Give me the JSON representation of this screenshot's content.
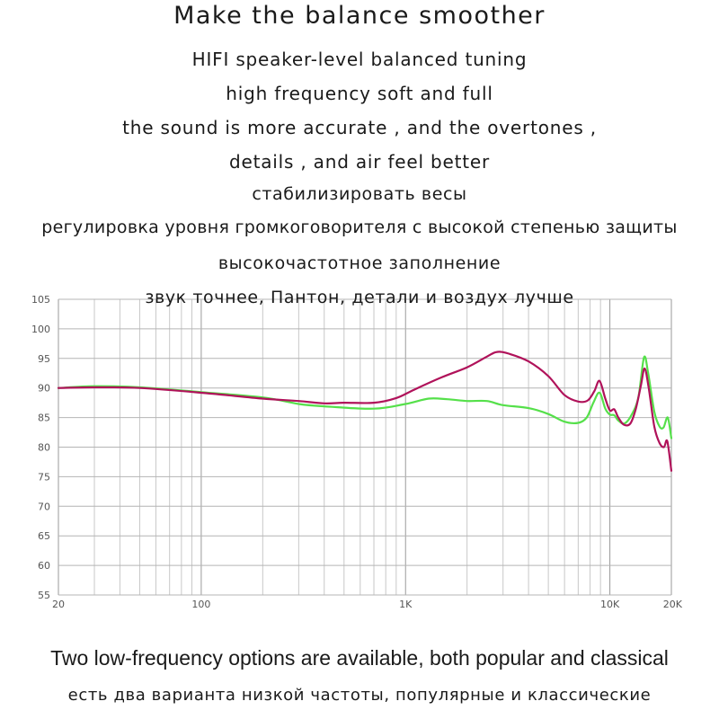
{
  "texts": {
    "title": "Make the balance smoother",
    "l1": "HIFI speaker-level balanced tuning",
    "l2": "high frequency soft and full",
    "l3": "the sound is more accurate , and the overtones ,",
    "l4": "details , and air feel better",
    "r1": "стабилизировать весы",
    "r2": "регулировка уровня громкоговорителя с высокой степенью защиты",
    "r3": "высокочастотное заполнение",
    "r4": "звук точнее, Пантон, детали и воздух лучше",
    "bottom_en": "Two low-frequency options are available, both popular and classical",
    "bottom_ru": "есть два варианта низкой частоты, популярные и классические"
  },
  "chart_data": {
    "type": "line",
    "x_scale": "log",
    "xlim": [
      20,
      20000
    ],
    "ylim": [
      55,
      105
    ],
    "x_ticks": [
      {
        "value": 20,
        "label": "20"
      },
      {
        "value": 100,
        "label": "100"
      },
      {
        "value": 1000,
        "label": "1K"
      },
      {
        "value": 10000,
        "label": "10K"
      },
      {
        "value": 20000,
        "label": "20K"
      }
    ],
    "y_ticks": [
      105,
      100,
      95,
      90,
      85,
      80,
      75,
      70,
      65,
      60,
      55
    ],
    "grid": true,
    "series": [
      {
        "color": "#55e04a",
        "points": [
          [
            20,
            90
          ],
          [
            30,
            90.3
          ],
          [
            50,
            90.1
          ],
          [
            100,
            89.3
          ],
          [
            200,
            88.4
          ],
          [
            300,
            87.3
          ],
          [
            400,
            86.9
          ],
          [
            700,
            86.5
          ],
          [
            1000,
            87.3
          ],
          [
            1300,
            88.2
          ],
          [
            1600,
            88.1
          ],
          [
            2000,
            87.8
          ],
          [
            2500,
            87.8
          ],
          [
            3000,
            87.1
          ],
          [
            4000,
            86.6
          ],
          [
            5000,
            85.6
          ],
          [
            6000,
            84.3
          ],
          [
            7000,
            84.1
          ],
          [
            7700,
            85
          ],
          [
            8300,
            87.5
          ],
          [
            8900,
            89.2
          ],
          [
            9500,
            86.5
          ],
          [
            10000,
            85.5
          ],
          [
            10500,
            85.4
          ],
          [
            11000,
            84.5
          ],
          [
            11800,
            84
          ],
          [
            12800,
            85.5
          ],
          [
            13800,
            88.5
          ],
          [
            14700,
            95.2
          ],
          [
            15400,
            92.5
          ],
          [
            16500,
            86
          ],
          [
            17500,
            83.5
          ],
          [
            18300,
            83.3
          ],
          [
            19200,
            85
          ],
          [
            20000,
            81.5
          ]
        ]
      },
      {
        "color": "#b0125a",
        "points": [
          [
            20,
            90
          ],
          [
            30,
            90.1
          ],
          [
            50,
            90
          ],
          [
            100,
            89.2
          ],
          [
            200,
            88.2
          ],
          [
            300,
            87.8
          ],
          [
            400,
            87.4
          ],
          [
            500,
            87.5
          ],
          [
            700,
            87.5
          ],
          [
            900,
            88.3
          ],
          [
            1100,
            89.7
          ],
          [
            1500,
            91.8
          ],
          [
            2000,
            93.5
          ],
          [
            2500,
            95.3
          ],
          [
            2800,
            96.1
          ],
          [
            3200,
            95.8
          ],
          [
            4000,
            94.5
          ],
          [
            5000,
            92
          ],
          [
            6000,
            88.8
          ],
          [
            7000,
            87.7
          ],
          [
            7800,
            87.9
          ],
          [
            8400,
            89.5
          ],
          [
            8900,
            91.2
          ],
          [
            9500,
            88.2
          ],
          [
            10000,
            86.2
          ],
          [
            10500,
            86.4
          ],
          [
            11000,
            85
          ],
          [
            11700,
            83.8
          ],
          [
            12600,
            84
          ],
          [
            13400,
            86.5
          ],
          [
            14200,
            90.5
          ],
          [
            14800,
            93.3
          ],
          [
            15500,
            90
          ],
          [
            16500,
            83.5
          ],
          [
            17500,
            80.7
          ],
          [
            18400,
            80
          ],
          [
            19100,
            81
          ],
          [
            20000,
            76
          ]
        ]
      }
    ]
  }
}
